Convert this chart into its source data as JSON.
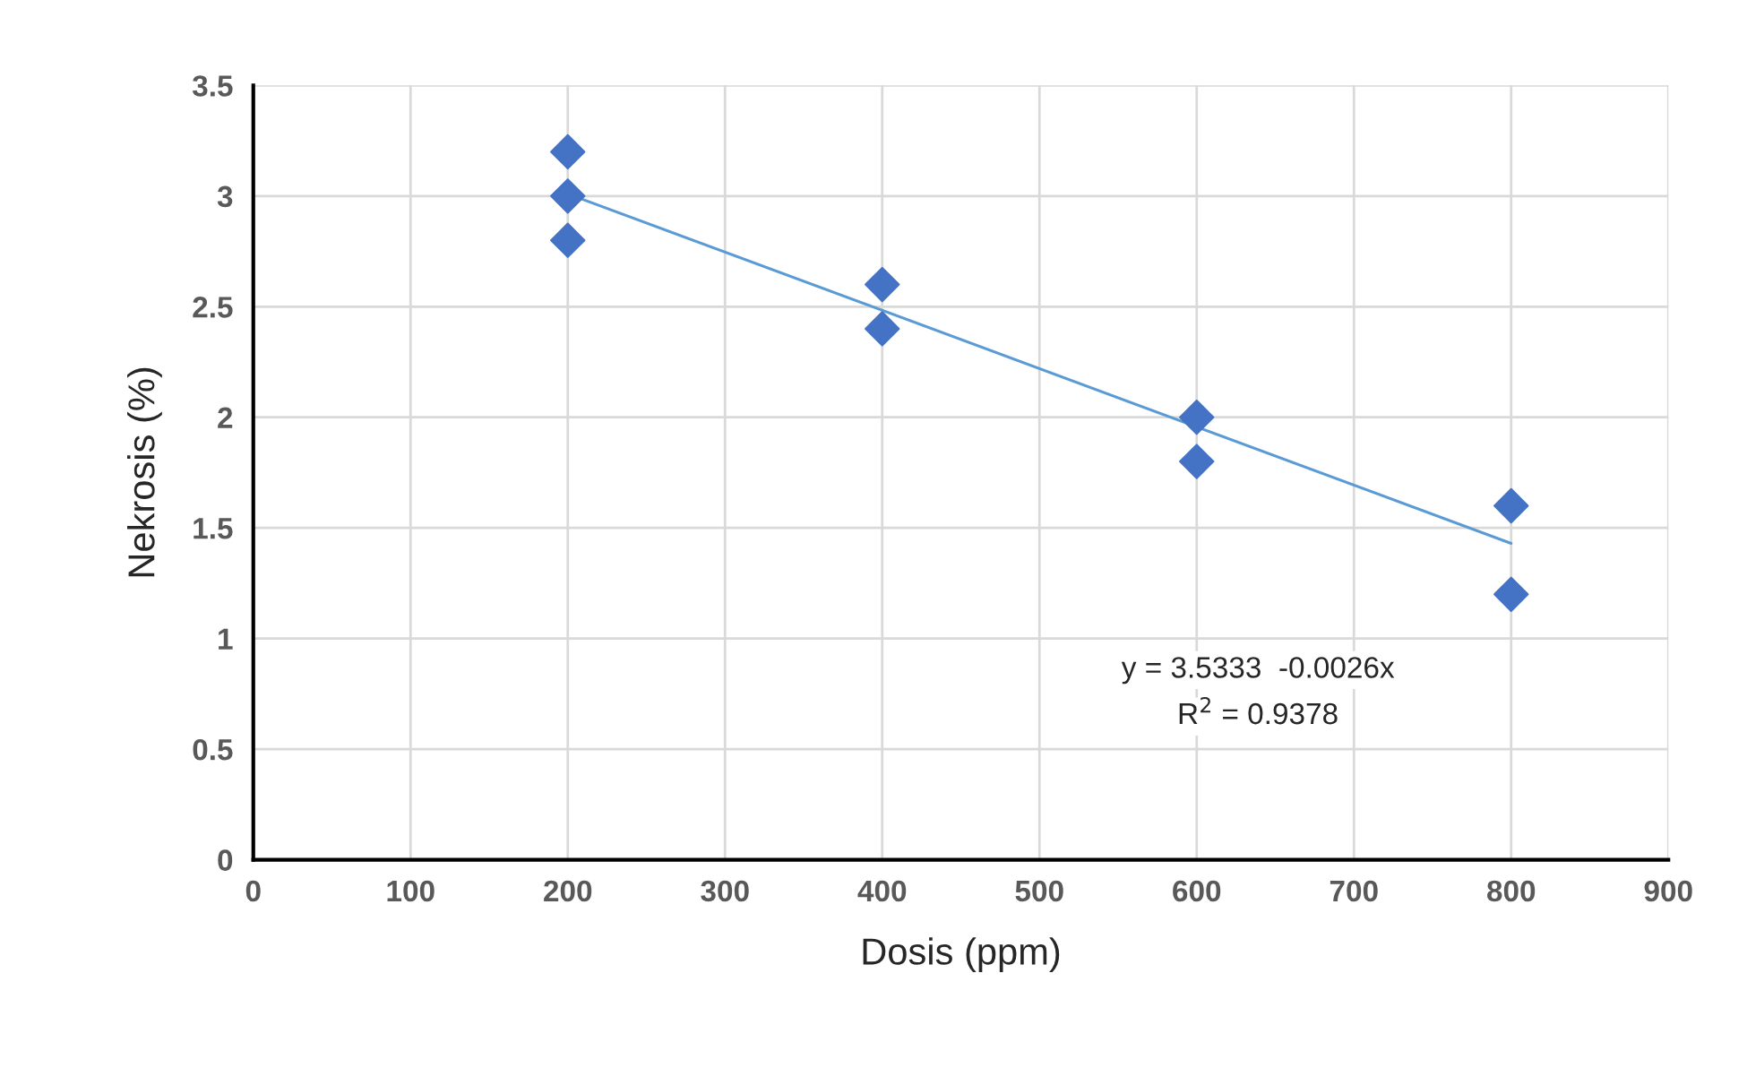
{
  "chart_data": {
    "type": "scatter",
    "xlabel": "Dosis (ppm)",
    "ylabel": "Nekrosis (%)",
    "xlim": [
      0,
      900
    ],
    "xticks": [
      0,
      100,
      200,
      300,
      400,
      500,
      600,
      700,
      800,
      900
    ],
    "ylim": [
      0,
      3.5
    ],
    "yticks": [
      0,
      0.5,
      1,
      1.5,
      2,
      2.5,
      3,
      3.5
    ],
    "grid": true,
    "series": [
      {
        "color": "#4472c4",
        "marker": "diamond",
        "x": [
          200,
          200,
          200,
          400,
          400,
          600,
          600,
          800,
          800
        ],
        "values": [
          3.2,
          3.0,
          2.8,
          2.6,
          2.4,
          2.0,
          1.8,
          1.6,
          1.2
        ]
      },
      {
        "type": "line",
        "color": "#5b9bd5",
        "x": [
          200,
          800
        ],
        "values": [
          3.01,
          1.43
        ]
      }
    ],
    "annotations": [
      "y = 3.5333  -0.0026x",
      "R$^{2}$ = 0.9378"
    ]
  }
}
